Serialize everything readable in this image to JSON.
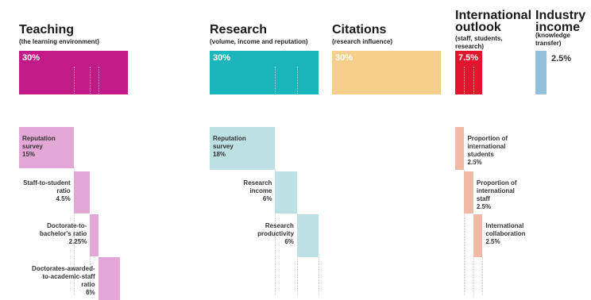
{
  "chart_data": {
    "type": "bar",
    "pillars": [
      {
        "id": "teaching",
        "title": "Teaching",
        "subtitle": "(the learning environment)",
        "weight": "30%",
        "value": 30,
        "color": "#c21a86",
        "light": "#e3a8d5",
        "components": [
          {
            "label": "Reputation survey",
            "weight": "15%",
            "value": 15
          },
          {
            "label": "Staff-to-student ratio",
            "weight": "4.5%",
            "value": 4.5
          },
          {
            "label": "Doctorate-to-bachelor's ratio",
            "weight": "2.25%",
            "value": 2.25
          },
          {
            "label": "Doctorates-awarded-to-academic-staff ratio",
            "weight": "6%",
            "value": 6
          }
        ]
      },
      {
        "id": "research",
        "title": "Research",
        "subtitle": "(volume, income and reputation)",
        "weight": "30%",
        "value": 30,
        "color": "#1bb6bb",
        "light": "#bde1e2",
        "components": [
          {
            "label": "Reputation survey",
            "weight": "18%",
            "value": 18
          },
          {
            "label": "Research income",
            "weight": "6%",
            "value": 6
          },
          {
            "label": "Research productivity",
            "weight": "6%",
            "value": 6
          }
        ]
      },
      {
        "id": "citations",
        "title": "Citations",
        "subtitle": "(research influence)",
        "weight": "30%",
        "value": 30,
        "color": "#f6d08a",
        "components": []
      },
      {
        "id": "international",
        "title": "International outlook",
        "subtitle": "(staff, students, research)",
        "weight": "7.5%",
        "value": 7.5,
        "color": "#e3152e",
        "light": "#f1b9a6",
        "components": [
          {
            "label": "Proportion of international students",
            "weight": "2.5%",
            "value": 2.5
          },
          {
            "label": "Proportion of international staff",
            "weight": "2.5%",
            "value": 2.5
          },
          {
            "label": "International collaboration",
            "weight": "2.5%",
            "value": 2.5
          }
        ]
      },
      {
        "id": "industry",
        "title": "Industry income",
        "subtitle": "(knowledge transfer)",
        "weight": "2.5%",
        "value": 2.5,
        "color": "#92c0dd",
        "components": []
      }
    ]
  }
}
